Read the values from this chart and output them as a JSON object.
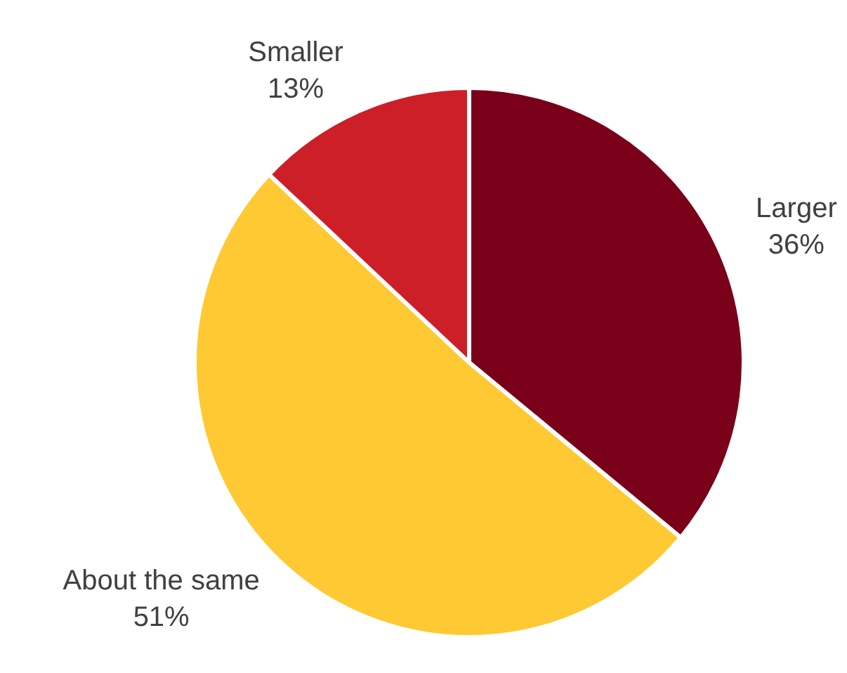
{
  "chart_data": {
    "type": "pie",
    "categories": [
      "Larger",
      "About the same",
      "Smaller"
    ],
    "values": [
      36,
      51,
      13
    ],
    "colors": [
      "#7a0019",
      "#ffc933",
      "#cc1f28"
    ],
    "value_labels": [
      "36%",
      "51%",
      "13%"
    ],
    "legend": false
  }
}
